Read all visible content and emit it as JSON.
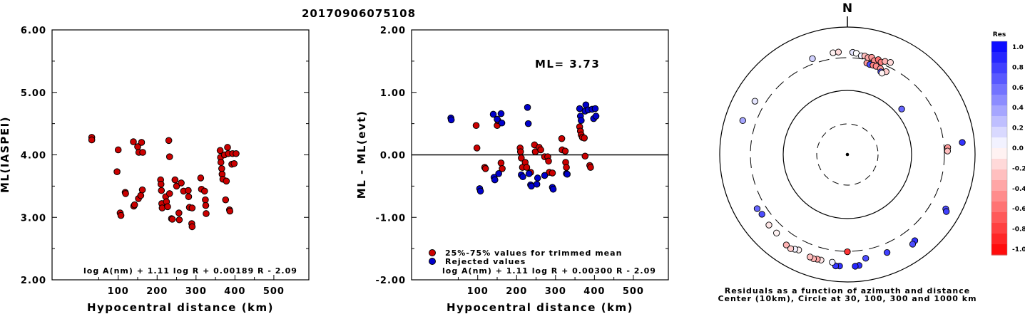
{
  "figure_title": "20170906075108",
  "chart_data": [
    {
      "type": "scatter",
      "ylabel": "ML(IASPEI)",
      "xlabel": "Hypocentral distance (km)",
      "xlim": [
        -70,
        590
      ],
      "ylim": [
        2.0,
        6.0
      ],
      "xticks": [
        "100",
        "200",
        "300",
        "400",
        "500"
      ],
      "yticks": [
        "2.00",
        "3.00",
        "4.00",
        "5.00",
        "6.00"
      ],
      "annotation": "log A(nm) + 1.11 log R + 0.00189 R - 2.09",
      "grid": false,
      "series": [
        {
          "color": "#cc0000",
          "points": [
            [
              32,
              4.28
            ],
            [
              32,
              4.24
            ],
            [
              97,
              3.73
            ],
            [
              100,
              4.08
            ],
            [
              105,
              3.07
            ],
            [
              107,
              3.03
            ],
            [
              118,
              3.4
            ],
            [
              119,
              3.38
            ],
            [
              139,
              4.21
            ],
            [
              140,
              3.18
            ],
            [
              142,
              3.2
            ],
            [
              150,
              4.13
            ],
            [
              152,
              3.3
            ],
            [
              153,
              4.04
            ],
            [
              158,
              3.35
            ],
            [
              160,
              4.2
            ],
            [
              162,
              3.44
            ],
            [
              163,
              4.04
            ],
            [
              209,
              3.6
            ],
            [
              210,
              3.53
            ],
            [
              211,
              3.43
            ],
            [
              212,
              3.22
            ],
            [
              213,
              3.15
            ],
            [
              222,
              3.33
            ],
            [
              224,
              3.25
            ],
            [
              227,
              3.17
            ],
            [
              230,
              4.23
            ],
            [
              232,
              3.38
            ],
            [
              232,
              3.97
            ],
            [
              237,
              2.98
            ],
            [
              239,
              2.97
            ],
            [
              246,
              3.6
            ],
            [
              250,
              3.5
            ],
            [
              256,
              3.07
            ],
            [
              257,
              2.96
            ],
            [
              262,
              3.55
            ],
            [
              268,
              3.42
            ],
            [
              280,
              3.43
            ],
            [
              281,
              3.33
            ],
            [
              283,
              3.16
            ],
            [
              289,
              2.9
            ],
            [
              290,
              2.85
            ],
            [
              290,
              3.15
            ],
            [
              312,
              3.63
            ],
            [
              314,
              3.45
            ],
            [
              322,
              3.42
            ],
            [
              324,
              3.28
            ],
            [
              325,
              3.19
            ],
            [
              326,
              3.06
            ],
            [
              362,
              4.07
            ],
            [
              363,
              3.96
            ],
            [
              364,
              3.88
            ],
            [
              366,
              3.78
            ],
            [
              367,
              3.69
            ],
            [
              369,
              3.61
            ],
            [
              373,
              4.0
            ],
            [
              376,
              3.28
            ],
            [
              378,
              3.58
            ],
            [
              381,
              4.12
            ],
            [
              383,
              4.02
            ],
            [
              386,
              3.12
            ],
            [
              387,
              3.1
            ],
            [
              392,
              3.85
            ],
            [
              394,
              4.02
            ],
            [
              398,
              3.86
            ],
            [
              403,
              4.02
            ]
          ]
        }
      ]
    },
    {
      "type": "scatter",
      "ylabel": "ML - ML(evt)",
      "xlabel": "Hypocentral distance (km)",
      "xlim": [
        -70,
        590
      ],
      "ylim": [
        -2.0,
        2.0
      ],
      "xticks": [
        "100",
        "200",
        "300",
        "400",
        "500"
      ],
      "yticks": [
        "-2.00",
        "-1.00",
        "0.00",
        "1.00",
        "2.00"
      ],
      "ml_text": "ML=  3.73",
      "annotation": "log A(nm) + 1.11 log R + 0.00300 R - 2.09",
      "legend_position": "bottom-left",
      "series": [
        {
          "name": "25%-75% values for trimmed mean",
          "color": "#cc0000",
          "points": [
            [
              96,
              0.47
            ],
            [
              98,
              0.11
            ],
            [
              118,
              -0.2
            ],
            [
              120,
              -0.22
            ],
            [
              150,
              0.47
            ],
            [
              152,
              0.55
            ],
            [
              160,
              -0.13
            ],
            [
              163,
              -0.22
            ],
            [
              209,
              0.11
            ],
            [
              210,
              0.05
            ],
            [
              212,
              -0.05
            ],
            [
              215,
              -0.2
            ],
            [
              222,
              -0.12
            ],
            [
              226,
              -0.2
            ],
            [
              236,
              -0.28
            ],
            [
              246,
              0.16
            ],
            [
              248,
              0.05
            ],
            [
              258,
              0.12
            ],
            [
              262,
              0.08
            ],
            [
              272,
              -0.03
            ],
            [
              280,
              -0.03
            ],
            [
              282,
              -0.1
            ],
            [
              284,
              -0.28
            ],
            [
              292,
              -0.29
            ],
            [
              316,
              0.26
            ],
            [
              317,
              0.08
            ],
            [
              325,
              0.06
            ],
            [
              326,
              -0.12
            ],
            [
              328,
              -0.2
            ],
            [
              362,
              0.45
            ],
            [
              364,
              0.38
            ],
            [
              366,
              0.32
            ],
            [
              369,
              0.28
            ],
            [
              374,
              0.27
            ],
            [
              376,
              -0.02
            ],
            [
              388,
              -0.17
            ],
            [
              390,
              -0.2
            ]
          ]
        },
        {
          "name": "Rejected values",
          "color": "#0000cc",
          "points": [
            [
              31,
              0.59
            ],
            [
              32,
              0.56
            ],
            [
              105,
              -0.54
            ],
            [
              107,
              -0.58
            ],
            [
              140,
              0.65
            ],
            [
              142,
              -0.36
            ],
            [
              144,
              -0.4
            ],
            [
              150,
              0.57
            ],
            [
              154,
              -0.3
            ],
            [
              160,
              0.66
            ],
            [
              162,
              0.51
            ],
            [
              212,
              -0.32
            ],
            [
              216,
              -0.35
            ],
            [
              228,
              0.76
            ],
            [
              230,
              0.5
            ],
            [
              232,
              -0.3
            ],
            [
              236,
              -0.48
            ],
            [
              238,
              -0.5
            ],
            [
              252,
              -0.47
            ],
            [
              254,
              -0.37
            ],
            [
              272,
              -0.33
            ],
            [
              292,
              -0.52
            ],
            [
              294,
              -0.55
            ],
            [
              328,
              -0.3
            ],
            [
              330,
              -0.31
            ],
            [
              362,
              0.74
            ],
            [
              364,
              0.62
            ],
            [
              366,
              0.55
            ],
            [
              376,
              0.7
            ],
            [
              378,
              0.8
            ],
            [
              384,
              0.72
            ],
            [
              394,
              0.73
            ],
            [
              398,
              0.58
            ],
            [
              402,
              0.74
            ],
            [
              404,
              0.62
            ]
          ]
        }
      ]
    },
    {
      "type": "scatter",
      "subtype": "azimuth-distance residual map",
      "north_label": "N",
      "caption_line1": "Residuals as a function of azimuth and distance",
      "caption_line2": "Center (10km), Circle at 30, 100, 300 and 1000 km",
      "colorbar_title": "Res",
      "colorbar_ticks": [
        "1.0",
        "0.8",
        "0.6",
        "0.4",
        "0.2",
        "0.0",
        "-0.2",
        "-0.4",
        "-0.6",
        "-0.8",
        "-1.0"
      ],
      "colorbar_range": [
        -1.0,
        1.0
      ],
      "stations": [
        {
          "az": 340,
          "dist": 368,
          "res": 0.18
        },
        {
          "az": 352,
          "dist": 378,
          "res": -0.05
        },
        {
          "az": 355,
          "dist": 380,
          "res": -0.15
        },
        {
          "az": 3,
          "dist": 372,
          "res": 0.1
        },
        {
          "az": 5,
          "dist": 362,
          "res": 0.0
        },
        {
          "az": 8,
          "dist": 335,
          "res": 0.05
        },
        {
          "az": 10,
          "dist": 340,
          "res": -0.25
        },
        {
          "az": 12,
          "dist": 328,
          "res": -0.35
        },
        {
          "az": 14,
          "dist": 342,
          "res": -0.4
        },
        {
          "az": 16,
          "dist": 310,
          "res": -0.45
        },
        {
          "az": 18,
          "dist": 336,
          "res": -0.55
        },
        {
          "az": 20,
          "dist": 318,
          "res": -0.5
        },
        {
          "az": 22,
          "dist": 345,
          "res": -0.3
        },
        {
          "az": 25,
          "dist": 362,
          "res": -0.15
        },
        {
          "az": 12,
          "dist": 268,
          "res": -0.4
        },
        {
          "az": 14,
          "dist": 262,
          "res": 0.7
        },
        {
          "az": 16,
          "dist": 263,
          "res": -0.5
        },
        {
          "az": 18,
          "dist": 262,
          "res": -0.45
        },
        {
          "az": 21,
          "dist": 255,
          "res": -0.4
        },
        {
          "az": 25,
          "dist": 250,
          "res": -0.2
        },
        {
          "az": 22,
          "dist": 232,
          "res": 0.7
        },
        {
          "az": 23,
          "dist": 226,
          "res": -0.05
        },
        {
          "az": 50,
          "dist": 125,
          "res": 0.6
        },
        {
          "az": 86,
          "dist": 345,
          "res": -0.4
        },
        {
          "az": 88,
          "dist": 340,
          "res": -0.25
        },
        {
          "az": 84,
          "dist": 620,
          "res": 0.8
        },
        {
          "az": 119,
          "dist": 550,
          "res": 0.7
        },
        {
          "az": 120,
          "dist": 590,
          "res": 0.75
        },
        {
          "az": 142,
          "dist": 490,
          "res": 0.8
        },
        {
          "az": 144,
          "dist": 520,
          "res": 0.7
        },
        {
          "az": 180,
          "dist": 305,
          "res": -0.8
        },
        {
          "az": 170,
          "dist": 420,
          "res": 0.7
        },
        {
          "az": 158,
          "dist": 425,
          "res": 0.75
        },
        {
          "az": 174,
          "dist": 535,
          "res": 0.8
        },
        {
          "az": 176,
          "dist": 545,
          "res": 0.85
        },
        {
          "az": 184,
          "dist": 540,
          "res": 0.8
        },
        {
          "az": 186,
          "dist": 545,
          "res": 0.8
        },
        {
          "az": 188,
          "dist": 480,
          "res": 0.05
        },
        {
          "az": 194,
          "dist": 480,
          "res": -0.1
        },
        {
          "az": 196,
          "dist": 482,
          "res": -0.35
        },
        {
          "az": 198,
          "dist": 495,
          "res": -0.3
        },
        {
          "az": 200,
          "dist": 485,
          "res": -0.25
        },
        {
          "az": 207,
          "dist": 450,
          "res": -0.05
        },
        {
          "az": 209,
          "dist": 470,
          "res": 0.05
        },
        {
          "az": 211,
          "dist": 500,
          "res": -0.2
        },
        {
          "az": 214,
          "dist": 485,
          "res": -0.3
        },
        {
          "az": 222,
          "dist": 425,
          "res": -0.05
        },
        {
          "az": 228,
          "dist": 420,
          "res": -0.1
        },
        {
          "az": 235,
          "dist": 400,
          "res": 0.7
        },
        {
          "az": 239,
          "dist": 415,
          "res": 0.6
        },
        {
          "az": 300,
          "dist": 440,
          "res": 0.1
        },
        {
          "az": 288,
          "dist": 500,
          "res": 0.35
        }
      ]
    }
  ]
}
